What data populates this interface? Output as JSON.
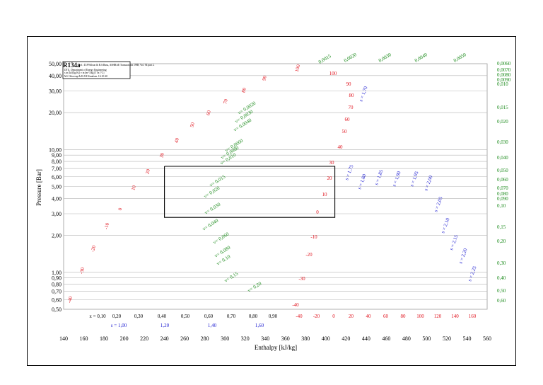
{
  "chart_data": {
    "type": "line",
    "title": "R134a",
    "source_lines": [
      "Ref. :D.P.Wilson & R.S.Basu, ASHRAE Transactions 1988, Vol. 94 part 2.",
      "DTU, Department of Energy Engineering",
      "s in [kJ/(kg K)]  v in [m^3/kg]  T in [°C]",
      "M.J. Skovrup & H.J.H Knudsen. 16-10-20"
    ],
    "xlabel": "Enthalpy [kJ/kg]",
    "ylabel": "Pressure [Bar]",
    "xlim": [
      140,
      560
    ],
    "ylim": [
      0.5,
      50
    ],
    "yscale": "log",
    "x_ticks": [
      "140",
      "160",
      "180",
      "200",
      "220",
      "240",
      "260",
      "280",
      "300",
      "320",
      "340",
      "360",
      "380",
      "400",
      "420",
      "440",
      "460",
      "480",
      "500",
      "520",
      "540",
      "560"
    ],
    "y_ticks": [
      "50,00",
      "40,00",
      "30,00",
      "20,00",
      "10,00",
      "9,00",
      "8,00",
      "7,00",
      "6,00",
      "5,00",
      "4,00",
      "3,00",
      "2,00",
      "1,00",
      "0,90",
      "0,80",
      "0,70",
      "0,60",
      "0,50"
    ],
    "quality_labels": [
      "x = 0,10",
      "0,20",
      "0,30",
      "0,40",
      "0,50",
      "0,60",
      "0,70",
      "0,80",
      "0,90"
    ],
    "entropy_bottom_labels": [
      "s = 1,00",
      "1,20",
      "1,40",
      "1,60"
    ],
    "bottom_temp_labels": [
      "-40",
      "-20",
      "0",
      "20",
      "40",
      "60",
      "80",
      "100",
      "120",
      "140",
      "160"
    ],
    "right_volume_labels": [
      "0,0060",
      "0,0070",
      "0,0080",
      "0,0090",
      "0,010",
      "0,015",
      "0,020",
      "0,030",
      "0,040",
      "0,050",
      "0,060",
      "0,070",
      "0,080",
      "0,090",
      "0,10",
      "0,15",
      "0,20",
      "0,30",
      "0,40",
      "0,50",
      "0,60"
    ],
    "top_volume_labels": [
      "0,0015",
      "0,0020",
      "0,0030",
      "0,0040",
      "0,0050"
    ],
    "saturated_liquid_temps": [
      "-40",
      "-30",
      "-20",
      "-10",
      "0",
      "10",
      "20",
      "30",
      "40",
      "50",
      "60",
      "70",
      "80",
      "90",
      "100"
    ],
    "saturated_vapour_temps": [
      "-40",
      "-30",
      "-20",
      "-10",
      "0",
      "10",
      "20",
      "30",
      "40",
      "50",
      "60",
      "70",
      "80",
      "90",
      "100"
    ],
    "inner_volume_labels": [
      "v= 0,0020",
      "v= 0,0030",
      "v= 0,0040",
      "v= 0,0060",
      "v= 0,0080",
      "v= 0,010",
      "v= 0,015",
      "v= 0,020",
      "v= 0,030",
      "v= 0,040",
      "v= 0,060",
      "v= 0,080",
      "v= 0,10",
      "v= 0,15",
      "v= 0,20"
    ],
    "entropy_labels": [
      "s = 1,70",
      "s = 1,75",
      "s = 1,80",
      "s = 1,85",
      "s = 1,90",
      "s = 1,95",
      "s = 2,00",
      "s = 2,05",
      "s = 2,10",
      "s = 2,15",
      "s = 2,20",
      "s = 2,25"
    ],
    "cycle": {
      "points": [
        [
          240,
          7.3
        ],
        [
          409,
          7.3
        ],
        [
          409,
          2.8
        ],
        [
          240,
          2.8
        ]
      ]
    },
    "grid": true,
    "colors": {
      "temperature": "#e0141e",
      "volume": "#1a8a1a",
      "entropy": "#1a1ad0"
    }
  }
}
